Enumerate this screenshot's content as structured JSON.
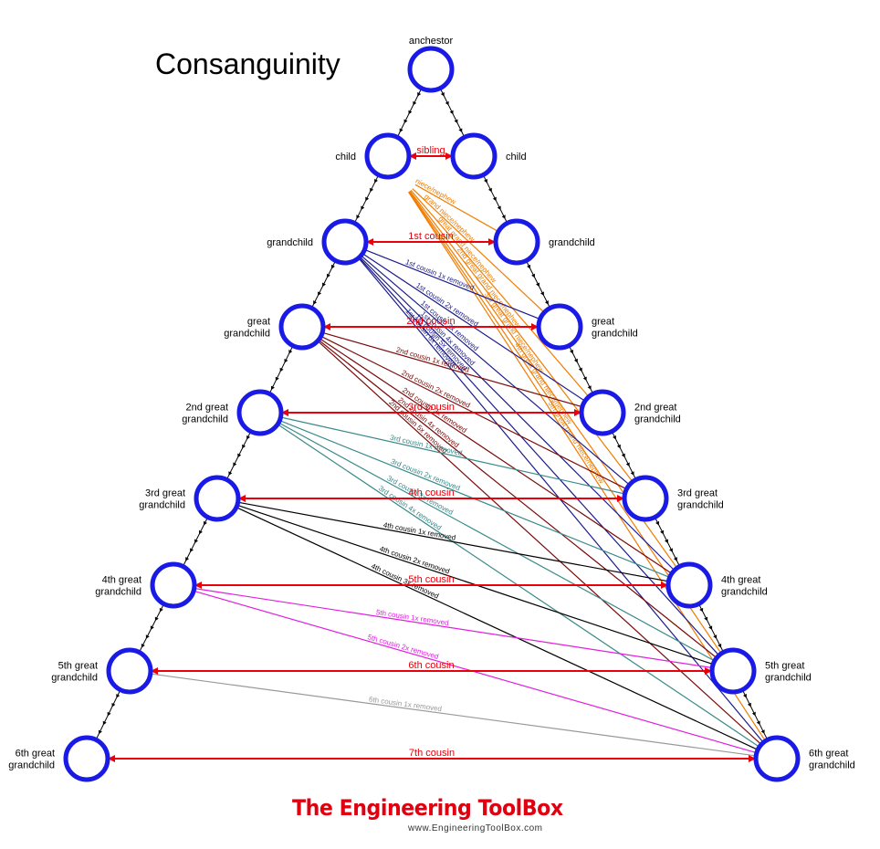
{
  "title": "Consanguinity",
  "colors": {
    "node_stroke": "#1a1ae6",
    "cousin_line": "#e8000b",
    "descent_line": "#000000",
    "uncle_lines": "#f07d00",
    "first_cousin_removed": "#1b1b8c",
    "second_cousin_removed": "#7a0a0a",
    "third_cousin_removed": "#3a8a8a",
    "fourth_cousin_removed": "#000000",
    "fifth_cousin_removed": "#e020e0",
    "sixth_cousin_removed": "#999999"
  },
  "nodes": {
    "ancestor": "anchestor",
    "left": [
      "child",
      "grandchild",
      "great\ngrandchild",
      "2nd great\ngrandchild",
      "3rd great\ngrandchild",
      "4th great\ngrandchild",
      "5th great\ngrandchild",
      "6th great\ngrandchild"
    ],
    "right": [
      "child",
      "grandchild",
      "great\ngrandchild",
      "2nd great\ngrandchild",
      "3rd great\ngrandchild",
      "4th great\ngrandchild",
      "5th great\ngrandchild",
      "6th great\ngrandchild"
    ]
  },
  "same_generation_relations": [
    "sibling",
    "1st cousin",
    "2nd cousin",
    "3rd cousin",
    "4th cousin",
    "5th cousin",
    "6th cousin",
    "7th cousin"
  ],
  "uncle_relations": [
    "niece/nephew",
    "grand niece/nephew",
    "great grand niece/nephew",
    "2nd great grand niece/nephew",
    "3rd great grand niece/nephew",
    "4th great grand niece/nephew",
    "5th great grand niece/nephew"
  ],
  "removed_relations": [
    [
      "1st cousin 1x removed",
      "1st cousin 2x removed",
      "1st cousin 3x removed",
      "1st cousin 4x removed",
      "1st cousin 5x removed",
      "1st cousin 6x removed"
    ],
    [
      "2nd cousin 1x removed",
      "2nd cousin 2x removed",
      "2nd cousin 3x removed",
      "2nd cousin 4x removed",
      "2nd cousin 5x removed"
    ],
    [
      "3rd cousin 1x removed",
      "3rd cousin 2x removed",
      "3rd cousin 3x removed",
      "3rd cousin 4x removed"
    ],
    [
      "4th cousin 1x removed",
      "4th cousin 2x removed",
      "4th cousin 3x removed"
    ],
    [
      "5th cousin 1x removed",
      "5th cousin 2x removed"
    ],
    [
      "6th cousin 1x removed"
    ]
  ],
  "logo": {
    "name": "The Engineering ToolBox",
    "url": "www.EngineeringToolBox.com"
  }
}
